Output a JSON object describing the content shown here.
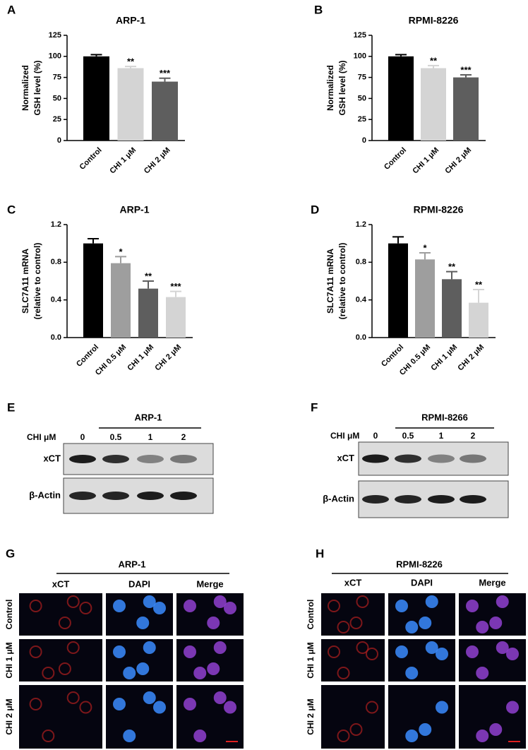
{
  "chart_data": [
    {
      "type": "bar",
      "panel_label": "A",
      "title": "ARP-1",
      "ylabel": [
        "Normalized",
        "GSH level (%)"
      ],
      "categories": [
        "Control",
        "CHI 1 μM",
        "CHI 2 μM"
      ],
      "values": [
        100,
        86,
        70
      ],
      "errors": [
        2,
        2,
        4
      ],
      "colors": [
        "#000000",
        "#d4d4d4",
        "#5e5e5e"
      ],
      "annotations": [
        null,
        "**",
        "***"
      ],
      "ylim": [
        0,
        125
      ],
      "yticks": [
        0,
        25,
        50,
        75,
        100,
        125
      ]
    },
    {
      "type": "bar",
      "panel_label": "B",
      "title": "RPMI-8226",
      "ylabel": [
        "Normalized",
        "GSH level (%)"
      ],
      "categories": [
        "Control",
        "CHI 1 μM",
        "CHI 2 μM"
      ],
      "values": [
        100,
        86,
        75
      ],
      "errors": [
        2,
        3,
        3
      ],
      "colors": [
        "#000000",
        "#d4d4d4",
        "#5e5e5e"
      ],
      "annotations": [
        null,
        "**",
        "***"
      ],
      "ylim": [
        0,
        125
      ],
      "yticks": [
        0,
        25,
        50,
        75,
        100,
        125
      ]
    },
    {
      "type": "bar",
      "panel_label": "C",
      "title": "ARP-1",
      "ylabel": [
        "SLC7A11 mRNA",
        "(relative to control)"
      ],
      "categories": [
        "Control",
        "CHI 0.5 μM",
        "CHI 1 μM",
        "CHI 2 μM"
      ],
      "values": [
        1.0,
        0.79,
        0.52,
        0.43
      ],
      "errors": [
        0.05,
        0.07,
        0.08,
        0.06
      ],
      "colors": [
        "#000000",
        "#9e9e9e",
        "#5e5e5e",
        "#d4d4d4"
      ],
      "annotations": [
        null,
        "*",
        "**",
        "***"
      ],
      "ylim": [
        0,
        1.2
      ],
      "yticks": [
        {
          "value": 0,
          "label": "0.0"
        },
        0.4,
        0.8,
        1.2
      ]
    },
    {
      "type": "bar",
      "panel_label": "D",
      "title": "RPMI-8226",
      "ylabel": [
        "SLC7A11 mRNA",
        "(relative to control)"
      ],
      "categories": [
        "Control",
        "CHI 0.5 μM",
        "CHI 1 μM",
        "CHI 2 μM"
      ],
      "values": [
        1.0,
        0.83,
        0.62,
        0.37
      ],
      "errors": [
        0.07,
        0.07,
        0.08,
        0.14
      ],
      "colors": [
        "#000000",
        "#9e9e9e",
        "#5e5e5e",
        "#d4d4d4"
      ],
      "annotations": [
        null,
        "*",
        "**",
        "**"
      ],
      "ylim": [
        0,
        1.2
      ],
      "yticks": [
        {
          "value": 0,
          "label": "0.0"
        },
        0.4,
        0.8,
        1.2
      ]
    }
  ],
  "blots": [
    {
      "panel_label": "E",
      "title": "ARP-1",
      "dose_label": "CHI  μM",
      "doses": [
        "0",
        "0.5",
        "1",
        "2"
      ],
      "rows": [
        "xCT",
        "β-Actin"
      ]
    },
    {
      "panel_label": "F",
      "title": "RPMI-8266",
      "dose_label": "CHI  μM",
      "doses": [
        "0",
        "0.5",
        "1",
        "2"
      ],
      "rows": [
        "xCT",
        "β-Actin"
      ]
    }
  ],
  "micrographs": [
    {
      "panel_label": "G",
      "title": "ARP-1",
      "columns": [
        "xCT",
        "DAPI",
        "Merge"
      ],
      "rows": [
        "Control",
        "CHI 1 μM",
        "CHI 2 μM"
      ]
    },
    {
      "panel_label": "H",
      "title": "RPMI-8226",
      "columns": [
        "xCT",
        "DAPI",
        "Merge"
      ],
      "rows": [
        "Control",
        "CHI 1 μM",
        "CHI 2 μM"
      ]
    }
  ]
}
